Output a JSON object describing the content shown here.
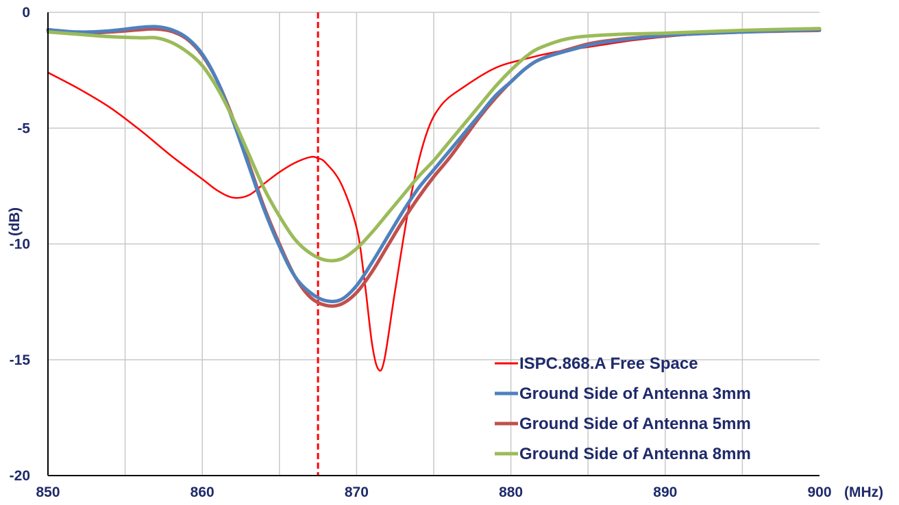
{
  "chart_data": {
    "type": "line",
    "xlabel": "(MHz)",
    "ylabel": "(dB)",
    "xlim": [
      850,
      900
    ],
    "ylim": [
      -20,
      0
    ],
    "xticks": [
      850,
      860,
      870,
      880,
      890,
      900
    ],
    "yticks": [
      0,
      -5,
      -10,
      -15,
      -20
    ],
    "grid": true,
    "legend_position": "bottom-right",
    "marker_line": {
      "x": 867.5,
      "color": "#ff0000",
      "style": "dashed"
    },
    "series": [
      {
        "name": "ISPC.868.A Free Space",
        "color": "#ff0000",
        "width": 2.5,
        "points": [
          [
            850,
            -2.6
          ],
          [
            852,
            -3.3
          ],
          [
            854,
            -4.1
          ],
          [
            856,
            -5.1
          ],
          [
            858,
            -6.2
          ],
          [
            860,
            -7.2
          ],
          [
            861,
            -7.7
          ],
          [
            862,
            -8.0
          ],
          [
            863,
            -7.9
          ],
          [
            864,
            -7.4
          ],
          [
            865,
            -6.9
          ],
          [
            866,
            -6.5
          ],
          [
            867,
            -6.25
          ],
          [
            867.5,
            -6.3
          ],
          [
            868,
            -6.5
          ],
          [
            869,
            -7.4
          ],
          [
            870,
            -9.3
          ],
          [
            870.5,
            -11.5
          ],
          [
            871,
            -14.3
          ],
          [
            871.4,
            -15.4
          ],
          [
            871.8,
            -15.0
          ],
          [
            872.5,
            -12.0
          ],
          [
            873.5,
            -8.0
          ],
          [
            874.5,
            -5.3
          ],
          [
            875.5,
            -4.0
          ],
          [
            877,
            -3.2
          ],
          [
            879,
            -2.4
          ],
          [
            881,
            -2.0
          ],
          [
            883,
            -1.7
          ],
          [
            885,
            -1.5
          ],
          [
            888,
            -1.2
          ],
          [
            891,
            -1.0
          ],
          [
            895,
            -0.85
          ],
          [
            900,
            -0.75
          ]
        ]
      },
      {
        "name": "Ground Side of Antenna 3mm",
        "color": "#4f81bd",
        "width": 5,
        "points": [
          [
            850,
            -0.75
          ],
          [
            852,
            -0.85
          ],
          [
            854,
            -0.8
          ],
          [
            856,
            -0.65
          ],
          [
            857,
            -0.62
          ],
          [
            858,
            -0.75
          ],
          [
            859,
            -1.1
          ],
          [
            860,
            -1.8
          ],
          [
            861,
            -3.0
          ],
          [
            862,
            -4.7
          ],
          [
            863,
            -6.6
          ],
          [
            864,
            -8.5
          ],
          [
            865,
            -10.1
          ],
          [
            866,
            -11.4
          ],
          [
            867,
            -12.1
          ],
          [
            868,
            -12.45
          ],
          [
            869,
            -12.4
          ],
          [
            870,
            -11.8
          ],
          [
            871,
            -10.8
          ],
          [
            872,
            -9.7
          ],
          [
            873,
            -8.6
          ],
          [
            874,
            -7.6
          ],
          [
            875,
            -6.8
          ],
          [
            876,
            -6.0
          ],
          [
            877,
            -5.2
          ],
          [
            878,
            -4.4
          ],
          [
            879,
            -3.6
          ],
          [
            880,
            -3.0
          ],
          [
            881,
            -2.4
          ],
          [
            882,
            -2.0
          ],
          [
            884,
            -1.6
          ],
          [
            886,
            -1.3
          ],
          [
            890,
            -1.0
          ],
          [
            895,
            -0.85
          ],
          [
            900,
            -0.75
          ]
        ]
      },
      {
        "name": "Ground Side of Antenna 5mm",
        "color": "#c0504d",
        "width": 5,
        "points": [
          [
            850,
            -0.8
          ],
          [
            852,
            -0.9
          ],
          [
            854,
            -0.85
          ],
          [
            856,
            -0.75
          ],
          [
            857,
            -0.72
          ],
          [
            858,
            -0.82
          ],
          [
            859,
            -1.15
          ],
          [
            860,
            -1.85
          ],
          [
            861,
            -3.0
          ],
          [
            862,
            -4.6
          ],
          [
            863,
            -6.5
          ],
          [
            864,
            -8.4
          ],
          [
            865,
            -10.0
          ],
          [
            866,
            -11.4
          ],
          [
            867,
            -12.3
          ],
          [
            868,
            -12.65
          ],
          [
            869,
            -12.6
          ],
          [
            870,
            -12.1
          ],
          [
            871,
            -11.2
          ],
          [
            872,
            -10.1
          ],
          [
            873,
            -9.0
          ],
          [
            874,
            -8.0
          ],
          [
            875,
            -7.1
          ],
          [
            876,
            -6.3
          ],
          [
            877,
            -5.4
          ],
          [
            878,
            -4.5
          ],
          [
            879,
            -3.7
          ],
          [
            880,
            -3.0
          ],
          [
            881,
            -2.4
          ],
          [
            882,
            -2.0
          ],
          [
            884,
            -1.55
          ],
          [
            886,
            -1.25
          ],
          [
            890,
            -1.0
          ],
          [
            895,
            -0.85
          ],
          [
            900,
            -0.78
          ]
        ]
      },
      {
        "name": "Ground Side of Antenna 8mm",
        "color": "#9bbb59",
        "width": 5,
        "points": [
          [
            850,
            -0.85
          ],
          [
            852,
            -0.95
          ],
          [
            854,
            -1.05
          ],
          [
            856,
            -1.1
          ],
          [
            857,
            -1.1
          ],
          [
            858,
            -1.3
          ],
          [
            859,
            -1.7
          ],
          [
            860,
            -2.3
          ],
          [
            861,
            -3.3
          ],
          [
            862,
            -4.6
          ],
          [
            863,
            -6.1
          ],
          [
            864,
            -7.6
          ],
          [
            865,
            -8.8
          ],
          [
            866,
            -9.8
          ],
          [
            867,
            -10.4
          ],
          [
            868,
            -10.7
          ],
          [
            869,
            -10.65
          ],
          [
            870,
            -10.2
          ],
          [
            871,
            -9.5
          ],
          [
            872,
            -8.7
          ],
          [
            873,
            -7.9
          ],
          [
            874,
            -7.1
          ],
          [
            875,
            -6.4
          ],
          [
            876,
            -5.6
          ],
          [
            877,
            -4.8
          ],
          [
            878,
            -4.0
          ],
          [
            879,
            -3.2
          ],
          [
            880,
            -2.5
          ],
          [
            881,
            -1.9
          ],
          [
            882,
            -1.5
          ],
          [
            884,
            -1.1
          ],
          [
            887,
            -0.95
          ],
          [
            890,
            -0.9
          ],
          [
            895,
            -0.78
          ],
          [
            900,
            -0.7
          ]
        ]
      }
    ]
  }
}
